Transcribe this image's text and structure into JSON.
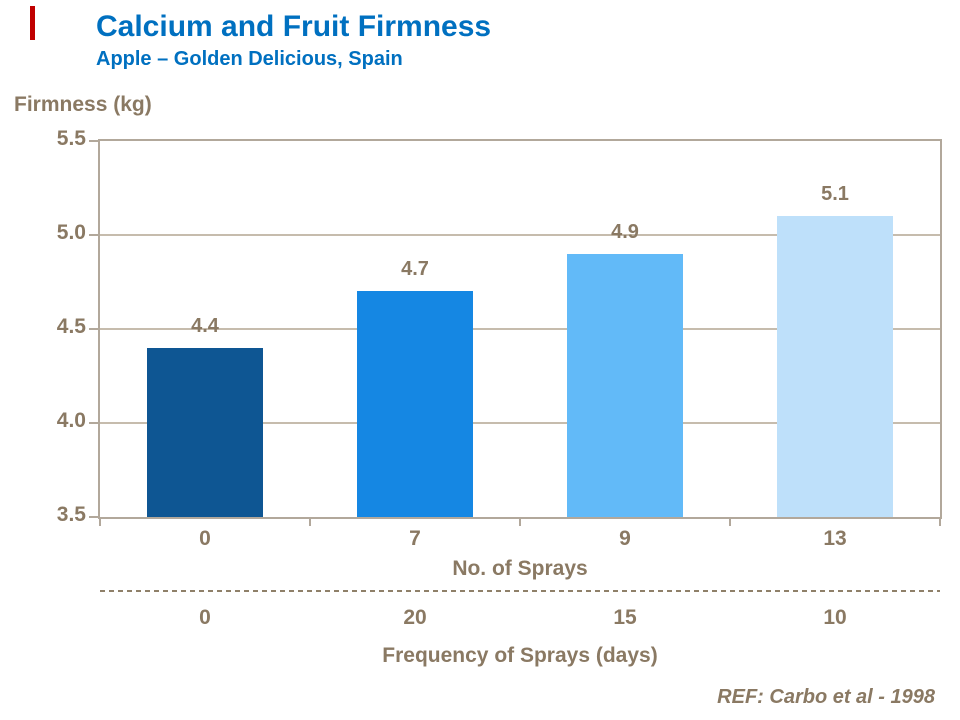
{
  "header": {
    "title": "Calcium and Fruit Firmness",
    "subtitle": "Apple – Golden Delicious, Spain",
    "title_color": "#0070C0",
    "accent_bar_color": "#C00000"
  },
  "chart_data": {
    "type": "bar",
    "title": "Calcium and Fruit Firmness",
    "subtitle": "Apple – Golden Delicious, Spain",
    "ylabel": "Firmness (kg)",
    "ylim": [
      3.5,
      5.5
    ],
    "yticks": [
      3.5,
      4.0,
      4.5,
      5.0,
      5.5
    ],
    "ytick_labels": [
      "3.5",
      "4.0",
      "4.5",
      "5.0",
      "5.5"
    ],
    "categories": [
      "0",
      "7",
      "9",
      "13"
    ],
    "values": [
      4.4,
      4.7,
      4.9,
      5.1
    ],
    "value_labels": [
      "4.4",
      "4.7",
      "4.9",
      "5.1"
    ],
    "xlabel_primary": "No. of Sprays",
    "secondary_categories": [
      "0",
      "20",
      "15",
      "10"
    ],
    "xlabel_secondary": "Frequency of Sprays (days)",
    "bar_colors": [
      "#0E5693",
      "#1587E3",
      "#62BAF8",
      "#BEE0FA"
    ],
    "grid": true,
    "legend": "none"
  },
  "footer": {
    "ref": "REF: Carbo et al - 1998"
  },
  "colors": {
    "text_brown": "#8A7963",
    "axis_frame": "#B2A89B",
    "gridline": "#C6BCAD"
  }
}
